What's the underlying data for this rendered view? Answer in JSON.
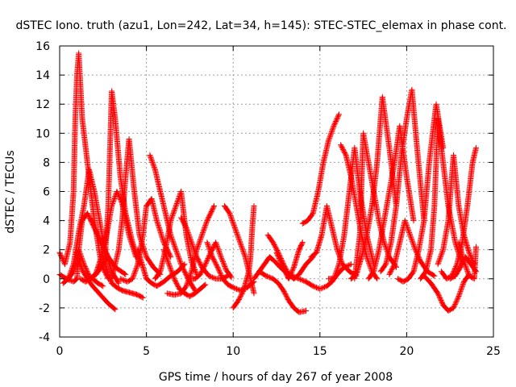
{
  "chart_data": {
    "type": "scatter",
    "title": "dSTEC Iono. truth (azu1, Lon=242, Lat=34, h=145): STEC-STEC_elemax in phase cont.",
    "xlabel": "GPS time / hours of day 267 of year 2008",
    "ylabel": "dSTEC  / TECUs",
    "xlim": [
      0,
      25
    ],
    "ylim": [
      -4,
      16
    ],
    "xticks": [
      0,
      5,
      10,
      15,
      20,
      25
    ],
    "yticks": [
      -4,
      -2,
      0,
      2,
      4,
      6,
      8,
      10,
      12,
      14,
      16
    ],
    "grid": true,
    "marker": "+",
    "color": "#ff0000",
    "series": [
      {
        "x": [
          0.0,
          0.4,
          0.8,
          1.0,
          1.1,
          1.4,
          1.7,
          2.0,
          2.2,
          2.5
        ],
        "y": [
          0.3,
          0.0,
          -0.2,
          0.0,
          2.0,
          1.0,
          0.2,
          -0.1,
          -0.3,
          -0.5
        ]
      },
      {
        "x": [
          0.0,
          0.3,
          0.6,
          0.8,
          0.9,
          1.0,
          1.1,
          1.3,
          1.6,
          2.0,
          2.4,
          2.8
        ],
        "y": [
          1.8,
          1.0,
          2.5,
          6.0,
          11.0,
          14.0,
          15.5,
          11.0,
          8.0,
          4.0,
          1.0,
          0.0
        ]
      },
      {
        "x": [
          0.2,
          0.5,
          0.8,
          1.1,
          1.4,
          1.7,
          2.0,
          2.3,
          2.6,
          3.0,
          3.4
        ],
        "y": [
          -0.3,
          0.0,
          1.0,
          3.2,
          5.0,
          7.5,
          6.0,
          4.0,
          2.0,
          0.5,
          -0.3
        ]
      },
      {
        "x": [
          0.5,
          0.8,
          1.1,
          1.3,
          1.6,
          2.0,
          2.4,
          2.8,
          3.2,
          3.8
        ],
        "y": [
          0.0,
          0.5,
          2.0,
          4.0,
          4.5,
          3.5,
          2.5,
          1.5,
          0.8,
          0.3
        ]
      },
      {
        "x": [
          1.0,
          1.3,
          1.6,
          1.9,
          2.2,
          2.5,
          2.8,
          3.2
        ],
        "y": [
          1.8,
          0.6,
          0.0,
          -0.5,
          -0.9,
          -1.3,
          -1.7,
          -2.1
        ]
      },
      {
        "x": [
          1.2,
          1.5,
          1.8,
          2.1,
          2.4,
          2.7,
          3.0,
          3.3,
          3.6,
          4.0,
          4.4
        ],
        "y": [
          0.0,
          -0.2,
          0.0,
          0.4,
          1.5,
          3.0,
          5.0,
          6.0,
          5.2,
          3.0,
          1.5
        ]
      },
      {
        "x": [
          1.8,
          2.1,
          2.4,
          2.6,
          2.8,
          3.0,
          3.2,
          3.5,
          3.8,
          4.2,
          4.6
        ],
        "y": [
          0.0,
          0.3,
          0.8,
          1.2,
          5.0,
          12.9,
          11.0,
          7.0,
          4.5,
          2.5,
          1.0
        ]
      },
      {
        "x": [
          2.5,
          2.8,
          3.0,
          3.3,
          3.6,
          3.9,
          4.2,
          4.5,
          4.8
        ],
        "y": [
          1.5,
          0.3,
          -0.3,
          -0.6,
          -0.8,
          -0.9,
          -1.0,
          -1.1,
          -1.3
        ]
      },
      {
        "x": [
          3.0,
          3.4,
          3.6,
          3.8,
          4.0,
          4.3,
          4.6,
          5.0,
          5.4,
          5.8
        ],
        "y": [
          0.0,
          2.0,
          4.0,
          7.0,
          9.6,
          6.0,
          3.0,
          1.5,
          0.8,
          0.3
        ]
      },
      {
        "x": [
          3.5,
          3.9,
          4.2,
          4.5,
          4.8,
          5.0,
          5.3,
          5.6,
          6.0,
          6.4
        ],
        "y": [
          0.0,
          -0.2,
          0.0,
          1.0,
          3.0,
          5.0,
          5.5,
          4.0,
          2.5,
          1.5
        ]
      },
      {
        "x": [
          4.5,
          4.8,
          5.0,
          5.3,
          5.6,
          6.0,
          6.4,
          6.8,
          7.2
        ],
        "y": [
          2.0,
          0.8,
          0.0,
          -0.3,
          -0.5,
          -0.2,
          0.2,
          0.5,
          1.0
        ]
      },
      {
        "x": [
          5.2,
          5.5,
          5.8,
          6.1,
          6.4,
          6.7,
          7.0,
          7.4,
          7.8
        ],
        "y": [
          8.5,
          7.5,
          6.0,
          4.5,
          3.0,
          2.0,
          1.0,
          0.0,
          -0.8
        ]
      },
      {
        "x": [
          5.5,
          5.8,
          6.1,
          6.4,
          6.7,
          7.0,
          7.3,
          7.6,
          7.9
        ],
        "y": [
          0.0,
          0.5,
          2.0,
          4.0,
          5.0,
          6.0,
          3.0,
          1.2,
          0.3
        ]
      },
      {
        "x": [
          6.0,
          6.3,
          6.6,
          6.9,
          7.2,
          7.5,
          7.8,
          8.1,
          8.4
        ],
        "y": [
          2.0,
          1.0,
          0.0,
          -0.7,
          -1.0,
          -1.2,
          -1.0,
          -0.7,
          -0.4
        ]
      },
      {
        "x": [
          6.2,
          6.6,
          7.0,
          7.3,
          7.6,
          7.9,
          8.2,
          8.5,
          8.9
        ],
        "y": [
          -1.0,
          -1.1,
          -1.0,
          -0.5,
          0.5,
          2.0,
          3.0,
          4.0,
          5.0
        ]
      },
      {
        "x": [
          7.0,
          7.3,
          7.6,
          7.9,
          8.2,
          8.6,
          9.0,
          9.4,
          9.8
        ],
        "y": [
          4.2,
          3.5,
          2.5,
          1.5,
          0.8,
          0.2,
          0.0,
          0.0,
          0.3
        ]
      },
      {
        "x": [
          7.5,
          7.8,
          8.1,
          8.4,
          8.7,
          9.0,
          9.3,
          9.6,
          9.9
        ],
        "y": [
          0.0,
          0.0,
          0.3,
          1.0,
          1.8,
          2.5,
          1.5,
          0.6,
          0.1
        ]
      },
      {
        "x": [
          8.5,
          8.8,
          9.1,
          9.4,
          9.7,
          10.0,
          10.4,
          10.8,
          11.2
        ],
        "y": [
          2.5,
          1.5,
          0.8,
          0.0,
          -0.4,
          -0.6,
          -0.8,
          -0.6,
          -0.2
        ]
      },
      {
        "x": [
          9.5,
          9.8,
          10.1,
          10.4,
          10.7,
          11.0,
          11.2
        ],
        "y": [
          5.0,
          4.5,
          3.5,
          2.5,
          1.5,
          0.0,
          -1.0
        ]
      },
      {
        "x": [
          10.0,
          10.3,
          10.6,
          10.9,
          11.0,
          11.1,
          11.2
        ],
        "y": [
          -2.0,
          -1.5,
          -0.8,
          0.5,
          1.5,
          3.5,
          5.0
        ]
      },
      {
        "x": [
          11.2,
          11.5,
          11.8,
          12.1,
          12.4,
          12.7,
          13.0,
          13.4,
          13.8
        ],
        "y": [
          0.0,
          0.5,
          1.0,
          1.5,
          1.2,
          0.8,
          0.5,
          0.2,
          0.0
        ]
      },
      {
        "x": [
          11.5,
          11.9,
          12.3,
          12.6,
          12.9,
          13.2,
          13.5,
          13.8,
          14.2
        ],
        "y": [
          0.5,
          0.2,
          0.0,
          -0.3,
          -0.8,
          -1.5,
          -2.0,
          -2.3,
          -2.2
        ]
      },
      {
        "x": [
          12.0,
          12.3,
          12.6,
          12.9,
          13.2,
          13.5,
          13.8,
          14.2,
          14.6
        ],
        "y": [
          3.0,
          2.5,
          1.8,
          1.0,
          0.3,
          0.0,
          0.3,
          1.0,
          1.5
        ]
      },
      {
        "x": [
          12.5,
          12.8,
          13.0,
          13.2,
          13.5,
          13.8,
          14.0
        ],
        "y": [
          1.8,
          1.0,
          0.5,
          0.0,
          0.8,
          2.0,
          2.5
        ]
      },
      {
        "x": [
          13.8,
          14.2,
          14.6,
          15.0,
          15.4,
          15.7,
          16.0,
          16.4,
          16.8
        ],
        "y": [
          0.0,
          -0.2,
          -0.5,
          -0.7,
          -0.5,
          -0.2,
          0.3,
          0.8,
          1.0
        ]
      },
      {
        "x": [
          14.0,
          14.3,
          14.6,
          14.9,
          15.2,
          15.5,
          15.8,
          16.1
        ],
        "y": [
          3.8,
          4.0,
          4.5,
          6.0,
          8.0,
          9.5,
          10.5,
          11.3
        ]
      },
      {
        "x": [
          14.5,
          14.8,
          15.1,
          15.4,
          15.7,
          16.0,
          16.3,
          16.7,
          17.1
        ],
        "y": [
          1.5,
          1.8,
          3.0,
          5.0,
          3.5,
          2.0,
          1.0,
          0.5,
          0.2
        ]
      },
      {
        "x": [
          15.5,
          15.8,
          16.1,
          16.4,
          16.7,
          17.0,
          17.3,
          17.7,
          18.1
        ],
        "y": [
          0.0,
          0.0,
          1.0,
          3.0,
          6.0,
          9.0,
          6.0,
          3.0,
          1.0
        ]
      },
      {
        "x": [
          16.2,
          16.5,
          16.8,
          17.1,
          17.4,
          17.7,
          18.0,
          18.3
        ],
        "y": [
          9.2,
          8.5,
          7.0,
          5.0,
          3.0,
          1.5,
          0.5,
          0.0
        ]
      },
      {
        "x": [
          16.8,
          17.1,
          17.4,
          17.7,
          18.0,
          18.3,
          18.6,
          19.0,
          19.4
        ],
        "y": [
          0.0,
          0.3,
          1.5,
          3.0,
          5.0,
          8.0,
          12.5,
          9.0,
          5.0
        ]
      },
      {
        "x": [
          17.0,
          17.3,
          17.5,
          17.8,
          18.1,
          18.4,
          18.7,
          19.0,
          19.4
        ],
        "y": [
          0.0,
          3.0,
          10.0,
          8.0,
          6.0,
          4.0,
          2.5,
          1.5,
          0.8
        ]
      },
      {
        "x": [
          17.8,
          18.1,
          18.4,
          18.7,
          19.0,
          19.3,
          19.6,
          20.0,
          20.4
        ],
        "y": [
          0.0,
          0.5,
          2.0,
          4.0,
          6.0,
          8.0,
          10.5,
          7.0,
          4.0
        ]
      },
      {
        "x": [
          18.5,
          18.8,
          19.1,
          19.4,
          19.7,
          20.0,
          20.3,
          20.6,
          21.0
        ],
        "y": [
          0.5,
          1.0,
          2.5,
          5.0,
          8.5,
          11.0,
          13.0,
          9.0,
          4.0
        ]
      },
      {
        "x": [
          19.0,
          19.3,
          19.6,
          19.9,
          20.2,
          20.5,
          20.8,
          21.2,
          21.6
        ],
        "y": [
          0.3,
          1.0,
          2.5,
          4.0,
          3.0,
          2.0,
          1.2,
          0.5,
          0.2
        ]
      },
      {
        "x": [
          19.5,
          19.8,
          20.1,
          20.4,
          20.7,
          21.0,
          21.3,
          21.7,
          22.1
        ],
        "y": [
          0.0,
          -0.2,
          0.0,
          0.5,
          2.0,
          4.0,
          8.0,
          12.0,
          9.0
        ]
      },
      {
        "x": [
          20.8,
          21.1,
          21.4,
          21.6,
          21.8,
          22.1,
          22.4,
          22.8,
          23.2
        ],
        "y": [
          0.0,
          0.5,
          2.0,
          5.0,
          11.0,
          8.0,
          5.0,
          2.5,
          1.0
        ]
      },
      {
        "x": [
          21.0,
          21.4,
          21.8,
          22.1,
          22.4,
          22.7,
          23.0,
          23.3,
          23.6
        ],
        "y": [
          0.2,
          -0.3,
          -1.0,
          -1.8,
          -2.2,
          -2.0,
          -1.2,
          -0.2,
          0.3
        ]
      },
      {
        "x": [
          21.8,
          22.1,
          22.4,
          22.7,
          23.0,
          23.3,
          23.6,
          23.9
        ],
        "y": [
          1.0,
          2.0,
          4.0,
          8.5,
          5.0,
          3.0,
          1.8,
          1.0
        ]
      },
      {
        "x": [
          22.0,
          22.3,
          22.6,
          22.9,
          23.2,
          23.5,
          23.8,
          24.0
        ],
        "y": [
          0.5,
          0.0,
          0.2,
          1.0,
          2.5,
          5.0,
          8.0,
          9.0
        ]
      },
      {
        "x": [
          22.5,
          22.8,
          23.1,
          23.4,
          23.7,
          24.0
        ],
        "y": [
          0.0,
          0.2,
          0.8,
          1.5,
          1.0,
          0.5
        ]
      },
      {
        "x": [
          23.0,
          23.3,
          23.6,
          23.9,
          24.0
        ],
        "y": [
          2.5,
          1.2,
          0.2,
          0.0,
          2.2
        ]
      }
    ]
  }
}
